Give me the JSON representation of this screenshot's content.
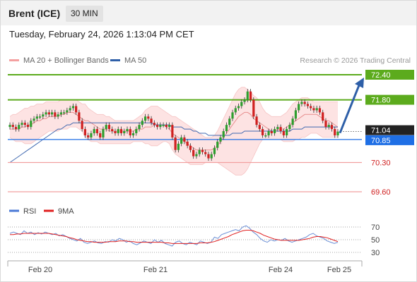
{
  "header": {
    "title": "Brent (ICE)",
    "interval": "30 MIN"
  },
  "timestamp": "Tuesday, February 24, 2026 1:13:04 PM CET",
  "legend": {
    "ma20_label": "MA 20 + Bollinger Bands",
    "ma50_label": "MA 50",
    "credit": "Research © 2026 Trading Central"
  },
  "colors": {
    "candle_up": "#2e9e2e",
    "candle_down": "#d02020",
    "bollinger_fill": "#fde3e3",
    "ma20": "#e89090",
    "ma50": "#4169b0",
    "resistance": "#5cab1d",
    "support": "#f2a0a0",
    "pivot": "#1f6fe5",
    "current_price": "#222222",
    "arrow": "#2e5fa8",
    "rsi": "#6b8fd6",
    "rsi_ma": "#e02020"
  },
  "chart_data": [
    {
      "type": "candlestick",
      "x_ticks": [
        "Feb 20",
        "Feb 21",
        "Feb 24",
        "Feb 25"
      ],
      "ylim": [
        69.3,
        72.6
      ],
      "levels": {
        "resistance": [
          72.4,
          71.8
        ],
        "pivot": 70.85,
        "support": [
          70.3,
          69.6
        ],
        "current": 71.04
      },
      "level_labels": {
        "r2": "72.40",
        "r1": "71.80",
        "current": "71.04",
        "pivot": "70.85",
        "s1": "70.30",
        "s2": "69.60"
      },
      "projection": {
        "from": 71.04,
        "to": 72.4
      },
      "closes": [
        71.2,
        71.15,
        71.1,
        71.2,
        71.25,
        71.2,
        71.15,
        71.3,
        71.35,
        71.4,
        71.4,
        71.45,
        71.5,
        71.45,
        71.5,
        71.4,
        71.45,
        71.5,
        71.5,
        71.55,
        71.6,
        71.65,
        71.5,
        71.3,
        71.1,
        70.95,
        70.9,
        71.0,
        71.1,
        71.0,
        70.9,
        71.1,
        71.2,
        71.1,
        71.05,
        71.0,
        71.1,
        71.0,
        71.05,
        71.1,
        70.95,
        71.0,
        71.1,
        71.2,
        71.3,
        71.4,
        71.35,
        71.25,
        71.2,
        71.15,
        71.2,
        71.2,
        71.15,
        71.2,
        70.9,
        70.6,
        70.75,
        70.9,
        70.8,
        70.7,
        70.6,
        70.45,
        70.5,
        70.6,
        70.55,
        70.5,
        70.4,
        70.5,
        70.65,
        70.8,
        70.9,
        71.05,
        71.2,
        71.35,
        71.5,
        71.6,
        71.65,
        71.75,
        71.8,
        72.0,
        71.8,
        71.4,
        71.2,
        71.1,
        70.95,
        70.95,
        71.05,
        71.0,
        71.1,
        71.15,
        71.05,
        70.95,
        71.1,
        71.2,
        71.35,
        71.55,
        71.7,
        71.75,
        71.7,
        71.65,
        71.6,
        71.55,
        71.6,
        71.5,
        71.3,
        71.15,
        71.2,
        71.1,
        70.95,
        71.04
      ],
      "ma20": [
        71.1,
        71.1,
        71.1,
        71.1,
        71.15,
        71.15,
        71.2,
        71.2,
        71.25,
        71.3,
        71.3,
        71.35,
        71.35,
        71.4,
        71.4,
        71.4,
        71.4,
        71.45,
        71.45,
        71.5,
        71.5,
        71.5,
        71.45,
        71.4,
        71.35,
        71.3,
        71.3,
        71.25,
        71.2,
        71.15,
        71.1,
        71.1,
        71.1,
        71.05,
        71.05,
        71.05,
        71.05,
        71.05,
        71.05,
        71.05,
        71.05,
        71.05,
        71.1,
        71.1,
        71.1,
        71.15,
        71.15,
        71.15,
        71.2,
        71.2,
        71.2,
        71.2,
        71.15,
        71.1,
        71.0,
        70.95,
        70.9,
        70.85,
        70.8,
        70.75,
        70.7,
        70.65,
        70.6,
        70.6,
        70.6,
        70.6,
        70.6,
        70.6,
        70.65,
        70.7,
        70.8,
        70.9,
        71.0,
        71.1,
        71.2,
        71.3,
        71.4,
        71.45,
        71.5,
        71.5,
        71.45,
        71.35,
        71.3,
        71.25,
        71.2,
        71.15,
        71.1,
        71.05,
        71.05,
        71.1,
        71.1,
        71.1,
        71.15,
        71.2,
        71.25,
        71.3,
        71.35,
        71.4,
        71.45,
        71.45,
        71.45,
        71.45,
        71.45,
        71.4,
        71.35,
        71.3,
        71.3,
        71.25,
        71.2,
        71.15
      ],
      "bb_upper": [
        71.4,
        71.45,
        71.45,
        71.5,
        71.55,
        71.6,
        71.6,
        71.65,
        71.65,
        71.7,
        71.7,
        71.7,
        71.75,
        71.75,
        71.75,
        71.75,
        71.75,
        71.8,
        71.8,
        71.8,
        71.8,
        71.8,
        71.8,
        71.75,
        71.7,
        71.7,
        71.6,
        71.55,
        71.5,
        71.45,
        71.45,
        71.45,
        71.4,
        71.4,
        71.35,
        71.3,
        71.3,
        71.3,
        71.3,
        71.3,
        71.3,
        71.3,
        71.35,
        71.4,
        71.45,
        71.55,
        71.6,
        71.65,
        71.65,
        71.65,
        71.6,
        71.55,
        71.5,
        71.45,
        71.4,
        71.4,
        71.35,
        71.3,
        71.25,
        71.2,
        71.15,
        71.1,
        71.05,
        71.0,
        70.95,
        70.9,
        70.9,
        70.9,
        70.95,
        71.05,
        71.2,
        71.35,
        71.5,
        71.65,
        71.8,
        71.95,
        72.05,
        72.1,
        72.1,
        72.05,
        72.0,
        71.9,
        71.85,
        71.75,
        71.6,
        71.5,
        71.45,
        71.4,
        71.4,
        71.4,
        71.4,
        71.45,
        71.5,
        71.6,
        71.7,
        71.75,
        71.8,
        71.85,
        71.85,
        71.85,
        71.8,
        71.75,
        71.75,
        71.75,
        71.75,
        71.75,
        71.75,
        71.75,
        71.75,
        71.75
      ],
      "bb_lower": [
        70.9,
        70.85,
        70.8,
        70.8,
        70.8,
        70.75,
        70.75,
        70.75,
        70.8,
        70.85,
        70.9,
        70.95,
        71.0,
        71.05,
        71.05,
        71.05,
        71.05,
        71.1,
        71.1,
        71.1,
        71.15,
        71.15,
        71.15,
        71.1,
        71.05,
        70.9,
        70.85,
        70.8,
        70.8,
        70.8,
        70.75,
        70.75,
        70.75,
        70.75,
        70.75,
        70.75,
        70.75,
        70.75,
        70.75,
        70.75,
        70.75,
        70.8,
        70.8,
        70.8,
        70.8,
        70.75,
        70.75,
        70.7,
        70.7,
        70.7,
        70.75,
        70.8,
        70.8,
        70.75,
        70.6,
        70.5,
        70.45,
        70.4,
        70.35,
        70.3,
        70.25,
        70.25,
        70.25,
        70.25,
        70.25,
        70.3,
        70.3,
        70.3,
        70.3,
        70.3,
        70.25,
        70.2,
        70.15,
        70.1,
        70.05,
        70.0,
        70.0,
        70.0,
        70.05,
        70.15,
        70.3,
        70.45,
        70.6,
        70.75,
        70.85,
        70.85,
        70.85,
        70.85,
        70.85,
        70.85,
        70.85,
        70.8,
        70.8,
        70.8,
        70.8,
        70.85,
        70.85,
        70.9,
        70.9,
        70.95,
        71.0,
        71.0,
        71.0,
        70.95,
        70.9,
        70.9,
        70.9,
        70.9,
        70.9,
        70.9
      ],
      "ma50": [
        70.3,
        70.35,
        70.4,
        70.45,
        70.5,
        70.55,
        70.6,
        70.65,
        70.7,
        70.75,
        70.8,
        70.85,
        70.9,
        70.95,
        71.0,
        71.05,
        71.1,
        71.1,
        71.15,
        71.2,
        71.2,
        71.25,
        71.25,
        71.25,
        71.25,
        71.25,
        71.25,
        71.25,
        71.25,
        71.25,
        71.25,
        71.25,
        71.25,
        71.25,
        71.25,
        71.25,
        71.25,
        71.25,
        71.25,
        71.25,
        71.25,
        71.25,
        71.25,
        71.25,
        71.25,
        71.25,
        71.25,
        71.25,
        71.2,
        71.2,
        71.2,
        71.2,
        71.2,
        71.2,
        71.15,
        71.15,
        71.15,
        71.15,
        71.1,
        71.1,
        71.1,
        71.05,
        71.05,
        71.0,
        71.0,
        71.0,
        70.95,
        70.95,
        70.95,
        70.95,
        70.95,
        70.95,
        70.95,
        70.95,
        71.0,
        71.0,
        71.0,
        71.0,
        71.05,
        71.05,
        71.05,
        71.05,
        71.05,
        71.05,
        71.05,
        71.05,
        71.05,
        71.05,
        71.05,
        71.05,
        71.05,
        71.05,
        71.05,
        71.05,
        71.1,
        71.1,
        71.1,
        71.1,
        71.15,
        71.15,
        71.15,
        71.15,
        71.15,
        71.15,
        71.15,
        71.15,
        71.15,
        71.15,
        71.15,
        71.15
      ]
    },
    {
      "type": "line",
      "legend": [
        "RSI",
        "9MA"
      ],
      "y_ticks": [
        "70",
        "50",
        "30"
      ],
      "ylim": [
        20,
        80
      ],
      "rsi": [
        60,
        62,
        60,
        58,
        64,
        60,
        62,
        58,
        61,
        59,
        62,
        60,
        58,
        60,
        56,
        58,
        55,
        52,
        50,
        48,
        52,
        46,
        44,
        46,
        48,
        45,
        44,
        47,
        46,
        50,
        48,
        52,
        50,
        46,
        48,
        44,
        42,
        45,
        48,
        46,
        44,
        50,
        46,
        49,
        44,
        42,
        40,
        46,
        48,
        44,
        42,
        46,
        44,
        42,
        48,
        46,
        44,
        46,
        54,
        52,
        58,
        60,
        62,
        64,
        66,
        64,
        70,
        72,
        68,
        62,
        58,
        52,
        48,
        46,
        50,
        48,
        50,
        49,
        52,
        48,
        46,
        48,
        50,
        52,
        54,
        58,
        60,
        56,
        54,
        52,
        48,
        46,
        44,
        46
      ],
      "rsi_ma": [
        58,
        58,
        59,
        59,
        60,
        60,
        60,
        60,
        60,
        60,
        60,
        60,
        59,
        58,
        57,
        56,
        55,
        53,
        52,
        50,
        49,
        48,
        47,
        47,
        46,
        46,
        46,
        46,
        47,
        47,
        47,
        48,
        48,
        48,
        47,
        47,
        46,
        46,
        46,
        46,
        46,
        46,
        46,
        46,
        45,
        45,
        44,
        44,
        44,
        44,
        44,
        44,
        44,
        44,
        45,
        45,
        45,
        46,
        47,
        49,
        51,
        53,
        55,
        58,
        60,
        62,
        64,
        65,
        65,
        64,
        62,
        60,
        57,
        55,
        53,
        51,
        50,
        49,
        49,
        49,
        49,
        49,
        49,
        50,
        51,
        52,
        54,
        55,
        55,
        54,
        53,
        51,
        49,
        47
      ]
    }
  ]
}
